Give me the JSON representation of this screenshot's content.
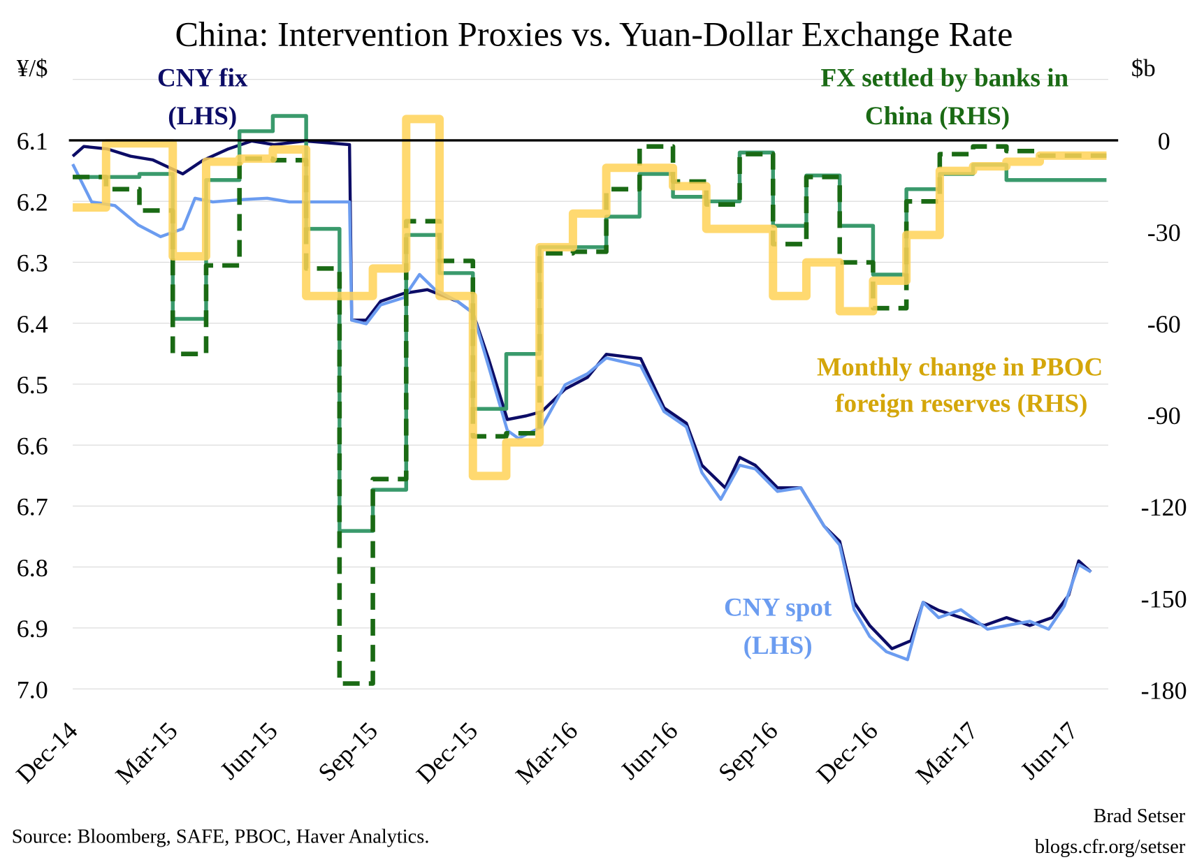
{
  "chart_data": {
    "type": "line",
    "title": "China: Intervention Proxies vs. Yuan-Dollar Exchange Rate",
    "left_axis": {
      "label": "¥/$",
      "ticks": [
        "6.1",
        "6.2",
        "6.3",
        "6.4",
        "6.5",
        "6.6",
        "6.7",
        "6.8",
        "6.9",
        "7.0"
      ],
      "range": [
        6.0,
        7.0
      ],
      "inverted": true
    },
    "right_axis": {
      "label": "$b",
      "ticks": [
        "0",
        "-30",
        "-60",
        "-90",
        "-120",
        "-150",
        "-180"
      ],
      "range": [
        22.5,
        -180
      ]
    },
    "x_ticks": [
      "Dec-14",
      "Mar-15",
      "Jun-15",
      "Sep-15",
      "Dec-15",
      "Mar-16",
      "Jun-16",
      "Sep-16",
      "Dec-16",
      "Mar-17",
      "Jun-17"
    ],
    "grid": "horizontal",
    "colors": {
      "fix": "#0c0c66",
      "spot": "#6b9cf0",
      "reserves": "#ffd257",
      "fx_solid": "#3a9a6c",
      "fx_dashed": "#1a6a14",
      "reserves_label": "#d4a60a",
      "zero_line": "#000000"
    },
    "months": [
      "2014-12",
      "2015-01",
      "2015-02",
      "2015-03",
      "2015-04",
      "2015-05",
      "2015-06",
      "2015-07",
      "2015-08",
      "2015-09",
      "2015-10",
      "2015-11",
      "2015-12",
      "2016-01",
      "2016-02",
      "2016-03",
      "2016-04",
      "2016-05",
      "2016-06",
      "2016-07",
      "2016-08",
      "2016-09",
      "2016-10",
      "2016-11",
      "2016-12",
      "2017-01",
      "2017-02",
      "2017-03",
      "2017-04",
      "2017-05",
      "2017-06"
    ],
    "series": [
      {
        "name": "Monthly change in PBOC foreign reserves (RHS)",
        "axis": "right",
        "style": "step",
        "values": [
          -22,
          -1,
          -1,
          -38,
          -7,
          -6,
          -3,
          -51,
          -51,
          -42,
          7,
          -51,
          -110,
          -99,
          -35,
          -24,
          -9,
          -9,
          -15,
          -29,
          -29,
          -51,
          -40,
          -56,
          -46,
          -31,
          -10,
          -8.5,
          -7,
          -5,
          -5
        ]
      },
      {
        "axis": "right",
        "style": "step",
        "values": [
          -12,
          -12,
          -11,
          -58.5,
          -13,
          3,
          8,
          -29,
          -128,
          -114.5,
          -31,
          -43.5,
          -88,
          -70,
          -35,
          -35,
          -25,
          -11,
          -18.5,
          -20,
          -4,
          -28,
          -11.5,
          -28,
          -44,
          -16,
          -11,
          -8,
          -13,
          -13,
          -13
        ]
      },
      {
        "name": "FX settled by banks in China (RHS)",
        "axis": "right",
        "style": "step-dashed",
        "values": [
          -12,
          -16,
          -23,
          -70,
          -41,
          -6,
          -6.5,
          -42,
          -178,
          -111,
          -26.5,
          -39.5,
          -97,
          -96,
          -37,
          -36.5,
          -16,
          -2,
          -13.5,
          -21,
          -4.5,
          -34,
          -12,
          -40,
          -55,
          -20,
          -4.5,
          -2,
          -3.5,
          -5,
          -5
        ]
      },
      {
        "name": "CNY fix (LHS)",
        "axis": "left",
        "style": "line",
        "dates": [
          "2014-12-01",
          "2014-12-11",
          "2015-01-02",
          "2015-01-23",
          "2015-02-13",
          "2015-03-10",
          "2015-03-28",
          "2015-04-21",
          "2015-05-12",
          "2015-06-02",
          "2015-06-30",
          "2015-08-10",
          "2015-08-12",
          "2015-08-25",
          "2015-09-08",
          "2015-09-29",
          "2015-10-20",
          "2015-11-17",
          "2015-12-01",
          "2015-12-15",
          "2016-01-02",
          "2016-01-19",
          "2016-02-03",
          "2016-02-24",
          "2016-03-14",
          "2016-04-01",
          "2016-05-02",
          "2016-05-23",
          "2016-06-13",
          "2016-06-27",
          "2016-07-18",
          "2016-08-01",
          "2016-08-15",
          "2016-09-05",
          "2016-09-26",
          "2016-10-17",
          "2016-11-01",
          "2016-11-14",
          "2016-11-28",
          "2016-12-18",
          "2017-01-05",
          "2017-01-16",
          "2017-01-30",
          "2017-02-20",
          "2017-03-11",
          "2017-04-01",
          "2017-04-22",
          "2017-05-12",
          "2017-05-27",
          "2017-06-06",
          "2017-06-17"
        ],
        "values": [
          6.126,
          6.11,
          6.114,
          6.126,
          6.132,
          6.155,
          6.133,
          6.114,
          6.101,
          6.107,
          6.101,
          6.107,
          6.395,
          6.395,
          6.364,
          6.351,
          6.345,
          6.364,
          6.383,
          6.458,
          6.558,
          6.552,
          6.545,
          6.508,
          6.489,
          6.451,
          6.458,
          6.539,
          6.564,
          6.633,
          6.67,
          6.62,
          6.633,
          6.67,
          6.67,
          6.733,
          6.758,
          6.858,
          6.896,
          6.934,
          6.921,
          6.858,
          6.871,
          6.883,
          6.896,
          6.883,
          6.896,
          6.883,
          6.846,
          6.79,
          6.808
        ]
      },
      {
        "name": "CNY spot (LHS)",
        "axis": "left",
        "style": "line",
        "dates": [
          "2014-12-01",
          "2014-12-18",
          "2015-01-09",
          "2015-01-30",
          "2015-02-20",
          "2015-03-10",
          "2015-03-21",
          "2015-04-07",
          "2015-05-05",
          "2015-05-26",
          "2015-06-16",
          "2015-07-07",
          "2015-08-10",
          "2015-08-12",
          "2015-08-25",
          "2015-09-08",
          "2015-09-29",
          "2015-10-13",
          "2015-10-27",
          "2015-11-17",
          "2015-12-01",
          "2015-12-15",
          "2016-01-02",
          "2016-01-12",
          "2016-02-03",
          "2016-02-24",
          "2016-03-14",
          "2016-04-01",
          "2016-05-02",
          "2016-05-23",
          "2016-06-13",
          "2016-06-27",
          "2016-07-14",
          "2016-08-01",
          "2016-08-15",
          "2016-09-05",
          "2016-09-26",
          "2016-10-17",
          "2016-11-01",
          "2016-11-14",
          "2016-11-28",
          "2016-12-13",
          "2017-01-02",
          "2017-01-16",
          "2017-01-30",
          "2017-02-20",
          "2017-03-14",
          "2017-04-01",
          "2017-04-22",
          "2017-05-09",
          "2017-05-23",
          "2017-06-06",
          "2017-06-17"
        ],
        "values": [
          6.139,
          6.201,
          6.207,
          6.239,
          6.258,
          6.245,
          6.195,
          6.201,
          6.197,
          6.195,
          6.201,
          6.201,
          6.201,
          6.395,
          6.401,
          6.37,
          6.358,
          6.32,
          6.345,
          6.364,
          6.383,
          6.47,
          6.576,
          6.589,
          6.57,
          6.501,
          6.483,
          6.457,
          6.47,
          6.545,
          6.57,
          6.645,
          6.689,
          6.633,
          6.639,
          6.676,
          6.67,
          6.733,
          6.764,
          6.87,
          6.914,
          6.939,
          6.952,
          6.858,
          6.883,
          6.87,
          6.902,
          6.896,
          6.889,
          6.902,
          6.864,
          6.796,
          6.808
        ]
      }
    ],
    "annotations": {
      "fix_label": [
        "CNY fix",
        "(LHS)"
      ],
      "fx_label": [
        "FX settled by banks in",
        "China (RHS)"
      ],
      "reserves_label": [
        "Monthly change in PBOC",
        "foreign reserves (RHS)"
      ],
      "spot_label": [
        "CNY spot",
        "(LHS)"
      ]
    },
    "source": "Source: Bloomberg, SAFE, PBOC, Haver Analytics.",
    "credit": [
      "Brad Setser",
      "blogs.cfr.org/setser"
    ]
  }
}
